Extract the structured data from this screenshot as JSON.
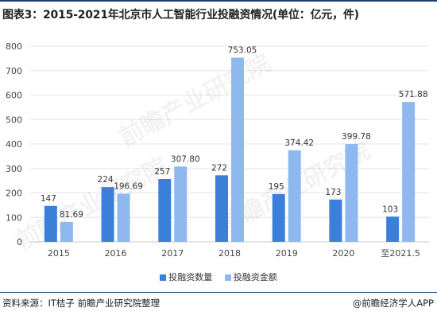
{
  "title": "图表3：2015-2021年北京市人工智能行业投融资情况(单位：亿元，件)",
  "source": "资料来源：IT桔子 前瞻产业研究院整理",
  "credit": "@前瞻经济学人APP",
  "watermark": "前瞻产业研究院",
  "colors": {
    "count": "#3b7fd9",
    "amount": "#8fb8ef",
    "grid": "#e6e6e6",
    "axis": "#c9c9c9",
    "rule": "#1f3f6e"
  },
  "chart_data": {
    "type": "bar",
    "categories": [
      "2015",
      "2016",
      "2017",
      "2018",
      "2019",
      "2020",
      "至2021.5"
    ],
    "series": [
      {
        "name": "投融资数量",
        "values": [
          147,
          224,
          257,
          272,
          195,
          173,
          103
        ],
        "labels": [
          "147",
          "224",
          "257",
          "272",
          "195",
          "173",
          "103"
        ]
      },
      {
        "name": "投融资金额",
        "values": [
          81.69,
          196.69,
          307.8,
          753.05,
          374.42,
          399.78,
          571.88
        ],
        "labels": [
          "81.69",
          "196.69",
          "307.80",
          "753.05",
          "374.42",
          "399.78",
          "571.88"
        ]
      }
    ],
    "yticks": [
      "0",
      "100",
      "200",
      "300",
      "400",
      "500",
      "600",
      "700",
      "800"
    ],
    "ylim": [
      0,
      800
    ],
    "grid": true,
    "legend": "bottom-center"
  }
}
